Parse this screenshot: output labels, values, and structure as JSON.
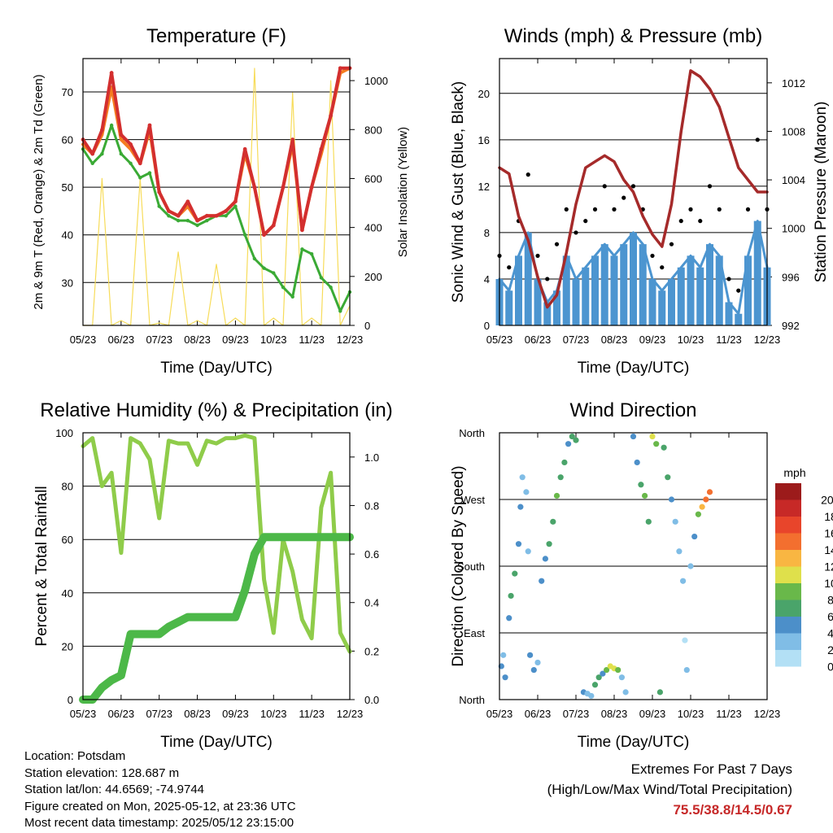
{
  "x_ticks": [
    "05/23",
    "06/23",
    "07/23",
    "08/23",
    "09/23",
    "10/23",
    "11/23",
    "12/23"
  ],
  "footer": {
    "location": "Location: Potsdam",
    "elevation": "Station elevation: 128.687 m",
    "latlon": "Station lat/lon: 44.6569; -74.9744",
    "created": "Figure created on Mon, 2025-05-12, at 23:36 UTC",
    "recent": "Most recent data timestamp: 2025/05/12 23:15:00"
  },
  "extremes": {
    "title": "Extremes For Past 7 Days",
    "subtitle": "(High/Low/Max Wind/Total Precipitation)",
    "values": "75.5/38.8/14.5/0.67"
  },
  "colors": {
    "temp_2m": "#d32f2f",
    "temp_9m": "#f57c20",
    "dewpoint": "#3aaa35",
    "solar": "#f7dc5a",
    "wind": "#4c95d0",
    "gust": "#000000",
    "pressure": "#a52a2a",
    "rh": "#8fcc4a",
    "precip": "#4cb848"
  },
  "chart_data": [
    {
      "type": "line",
      "title": "Temperature (F)",
      "xlabel": "Time (Day/UTC)",
      "ylabel": "2m & 9m T (Red, Orange) & 2m Td (Green)",
      "y2label": "Solar Insolation (Yellow)",
      "ylim": [
        21,
        77
      ],
      "yticks": [
        30,
        40,
        50,
        60,
        70
      ],
      "y2lim": [
        0,
        1090
      ],
      "y2ticks": [
        0,
        200,
        400,
        600,
        800,
        1000
      ],
      "x": [
        0,
        0.25,
        0.5,
        0.75,
        1,
        1.25,
        1.5,
        1.75,
        2,
        2.25,
        2.5,
        2.75,
        3,
        3.25,
        3.5,
        3.75,
        4,
        4.25,
        4.5,
        4.75,
        5,
        5.25,
        5.5,
        5.75,
        6,
        6.25,
        6.5,
        6.75,
        7
      ],
      "series": [
        {
          "name": "2m T",
          "values": [
            60,
            57,
            62,
            74,
            61,
            59,
            55,
            63,
            49,
            45,
            44,
            47,
            43,
            44,
            44,
            45,
            47,
            58,
            50,
            40,
            42,
            50,
            60,
            41,
            50,
            58,
            65,
            75,
            75
          ]
        },
        {
          "name": "9m T",
          "values": [
            59,
            57,
            61,
            71,
            60,
            58,
            55,
            62,
            49,
            45,
            44,
            46,
            43,
            44,
            44,
            45,
            47,
            57,
            50,
            40,
            42,
            50,
            59,
            41,
            50,
            57,
            65,
            74,
            75
          ]
        },
        {
          "name": "2m Td",
          "values": [
            58,
            55,
            57,
            63,
            57,
            55,
            52,
            53,
            46,
            44,
            43,
            43,
            42,
            43,
            44,
            44,
            46,
            40,
            35,
            33,
            32,
            29,
            27,
            37,
            36,
            31,
            29,
            24,
            28
          ]
        },
        {
          "name": "Solar",
          "values": [
            0,
            0,
            600,
            0,
            20,
            0,
            600,
            0,
            10,
            0,
            300,
            0,
            20,
            0,
            250,
            0,
            30,
            0,
            1050,
            0,
            30,
            0,
            950,
            0,
            30,
            0,
            1000,
            0,
            80
          ]
        }
      ]
    },
    {
      "type": "line",
      "title": "Winds (mph) & Pressure (mb)",
      "xlabel": "Time (Day/UTC)",
      "ylabel": "Sonic Wind & Gust (Blue, Black)",
      "y2label": "Station Pressure (Maroon)",
      "ylim": [
        0,
        23
      ],
      "yticks": [
        0,
        4,
        8,
        12,
        16,
        20
      ],
      "y2lim": [
        992,
        1014
      ],
      "y2ticks": [
        992,
        996,
        1000,
        1004,
        1008,
        1012
      ],
      "x": [
        0,
        0.25,
        0.5,
        0.75,
        1,
        1.25,
        1.5,
        1.75,
        2,
        2.25,
        2.5,
        2.75,
        3,
        3.25,
        3.5,
        3.75,
        4,
        4.25,
        4.5,
        4.75,
        5,
        5.25,
        5.5,
        5.75,
        6,
        6.25,
        6.5,
        6.75,
        7
      ],
      "series": [
        {
          "name": "Wind",
          "values": [
            4,
            3,
            6,
            8,
            4,
            2,
            3,
            6,
            4,
            5,
            6,
            7,
            6,
            7,
            8,
            7,
            4,
            3,
            4,
            5,
            6,
            5,
            7,
            6,
            2,
            1,
            6,
            9,
            5
          ]
        },
        {
          "name": "Gust",
          "values": [
            6,
            5,
            9,
            13,
            6,
            4,
            7,
            10,
            8,
            9,
            10,
            12,
            10,
            11,
            12,
            10,
            6,
            5,
            7,
            9,
            10,
            9,
            12,
            10,
            4,
            3,
            10,
            16,
            10
          ]
        },
        {
          "name": "Pressure",
          "values": [
            1005,
            1004.5,
            1001,
            999,
            996,
            993.5,
            994.5,
            998,
            1002,
            1005,
            1005.5,
            1006,
            1005.5,
            1004,
            1003,
            1001,
            999.5,
            998.5,
            1002,
            1008,
            1013,
            1012.5,
            1011.5,
            1010,
            1007.5,
            1005,
            1004,
            1003,
            1003
          ]
        }
      ]
    },
    {
      "type": "line",
      "title": "Relative Humidity (%) & Precipitation (in)",
      "xlabel": "Time (Day/UTC)",
      "ylabel": "Percent & Total Rainfall",
      "ylim": [
        0,
        100
      ],
      "yticks": [
        0,
        20,
        40,
        60,
        80,
        100
      ],
      "y2lim": [
        0,
        1.1
      ],
      "y2ticks": [
        "0.0",
        "0.2",
        "0.4",
        "0.6",
        "0.8",
        "1.0"
      ],
      "x": [
        0,
        0.25,
        0.5,
        0.75,
        1,
        1.25,
        1.5,
        1.75,
        2,
        2.25,
        2.5,
        2.75,
        3,
        3.25,
        3.5,
        3.75,
        4,
        4.25,
        4.5,
        4.75,
        5,
        5.25,
        5.5,
        5.75,
        6,
        6.25,
        6.5,
        6.75,
        7
      ],
      "series": [
        {
          "name": "RH",
          "values": [
            95,
            98,
            80,
            85,
            55,
            98,
            96,
            90,
            68,
            97,
            96,
            96,
            88,
            97,
            96,
            98,
            98,
            99,
            98,
            45,
            25,
            60,
            48,
            30,
            23,
            72,
            85,
            25,
            18
          ]
        },
        {
          "name": "Precip",
          "values": [
            0,
            0,
            0.05,
            0.08,
            0.1,
            0.27,
            0.27,
            0.27,
            0.27,
            0.3,
            0.32,
            0.34,
            0.34,
            0.34,
            0.34,
            0.34,
            0.34,
            0.45,
            0.6,
            0.67,
            0.67,
            0.67,
            0.67,
            0.67,
            0.67,
            0.67,
            0.67,
            0.67,
            0.67
          ]
        }
      ]
    },
    {
      "type": "scatter",
      "title": "Wind Direction",
      "xlabel": "Time (Day/UTC)",
      "ylabel": "Direction (Colored By Speed)",
      "ylim": [
        0,
        360
      ],
      "yticklabels": [
        "North",
        "East",
        "South",
        "West",
        "North"
      ],
      "colorbar_title": "mph",
      "colorbar_labels": [
        "0",
        "2",
        "4",
        "6",
        "8",
        "10",
        "12",
        "14",
        "16",
        "18",
        "20+"
      ],
      "colorbar_colors": [
        "#b3e0f5",
        "#80bde6",
        "#4c8fc9",
        "#4aa46a",
        "#69b84a",
        "#dfe04b",
        "#f9b642",
        "#f36f2f",
        "#e8452b",
        "#c72927",
        "#9c1b1b"
      ],
      "points": [
        {
          "x": 0.05,
          "y": 45,
          "speed": 4
        },
        {
          "x": 0.1,
          "y": 60,
          "speed": 3
        },
        {
          "x": 0.15,
          "y": 30,
          "speed": 5
        },
        {
          "x": 0.25,
          "y": 110,
          "speed": 4
        },
        {
          "x": 0.3,
          "y": 140,
          "speed": 6
        },
        {
          "x": 0.4,
          "y": 170,
          "speed": 7
        },
        {
          "x": 0.5,
          "y": 210,
          "speed": 5
        },
        {
          "x": 0.55,
          "y": 260,
          "speed": 4
        },
        {
          "x": 0.6,
          "y": 300,
          "speed": 3
        },
        {
          "x": 0.7,
          "y": 280,
          "speed": 2
        },
        {
          "x": 0.75,
          "y": 200,
          "speed": 3
        },
        {
          "x": 0.8,
          "y": 60,
          "speed": 4
        },
        {
          "x": 0.9,
          "y": 40,
          "speed": 5
        },
        {
          "x": 1.0,
          "y": 50,
          "speed": 3
        },
        {
          "x": 1.1,
          "y": 160,
          "speed": 4
        },
        {
          "x": 1.2,
          "y": 190,
          "speed": 5
        },
        {
          "x": 1.3,
          "y": 210,
          "speed": 6
        },
        {
          "x": 1.4,
          "y": 240,
          "speed": 7
        },
        {
          "x": 1.5,
          "y": 275,
          "speed": 8
        },
        {
          "x": 1.6,
          "y": 300,
          "speed": 7
        },
        {
          "x": 1.7,
          "y": 320,
          "speed": 6
        },
        {
          "x": 1.8,
          "y": 345,
          "speed": 5
        },
        {
          "x": 1.9,
          "y": 355,
          "speed": 6
        },
        {
          "x": 2.0,
          "y": 350,
          "speed": 7
        },
        {
          "x": 2.2,
          "y": 10,
          "speed": 5
        },
        {
          "x": 2.3,
          "y": 8,
          "speed": 3
        },
        {
          "x": 2.4,
          "y": 5,
          "speed": 2
        },
        {
          "x": 2.5,
          "y": 20,
          "speed": 6
        },
        {
          "x": 2.6,
          "y": 30,
          "speed": 7
        },
        {
          "x": 2.7,
          "y": 35,
          "speed": 4
        },
        {
          "x": 2.8,
          "y": 40,
          "speed": 9
        },
        {
          "x": 2.9,
          "y": 45,
          "speed": 10
        },
        {
          "x": 3.0,
          "y": 42,
          "speed": 11
        },
        {
          "x": 3.1,
          "y": 40,
          "speed": 9
        },
        {
          "x": 3.2,
          "y": 30,
          "speed": 3
        },
        {
          "x": 3.3,
          "y": 10,
          "speed": 2
        },
        {
          "x": 3.5,
          "y": 355,
          "speed": 4
        },
        {
          "x": 3.6,
          "y": 320,
          "speed": 5
        },
        {
          "x": 3.7,
          "y": 290,
          "speed": 7
        },
        {
          "x": 3.8,
          "y": 275,
          "speed": 8
        },
        {
          "x": 3.9,
          "y": 240,
          "speed": 6
        },
        {
          "x": 4.0,
          "y": 355,
          "speed": 10
        },
        {
          "x": 4.1,
          "y": 345,
          "speed": 9
        },
        {
          "x": 4.2,
          "y": 10,
          "speed": 6
        },
        {
          "x": 4.3,
          "y": 340,
          "speed": 7
        },
        {
          "x": 4.4,
          "y": 300,
          "speed": 6
        },
        {
          "x": 4.5,
          "y": 270,
          "speed": 5
        },
        {
          "x": 4.6,
          "y": 240,
          "speed": 3
        },
        {
          "x": 4.7,
          "y": 200,
          "speed": 2
        },
        {
          "x": 4.8,
          "y": 160,
          "speed": 2
        },
        {
          "x": 4.85,
          "y": 80,
          "speed": 1
        },
        {
          "x": 4.9,
          "y": 40,
          "speed": 2
        },
        {
          "x": 5.0,
          "y": 180,
          "speed": 3
        },
        {
          "x": 5.1,
          "y": 220,
          "speed": 4
        },
        {
          "x": 5.2,
          "y": 250,
          "speed": 9
        },
        {
          "x": 5.3,
          "y": 260,
          "speed": 12
        },
        {
          "x": 5.4,
          "y": 270,
          "speed": 14
        },
        {
          "x": 5.5,
          "y": 280,
          "speed": 15
        }
      ]
    }
  ]
}
